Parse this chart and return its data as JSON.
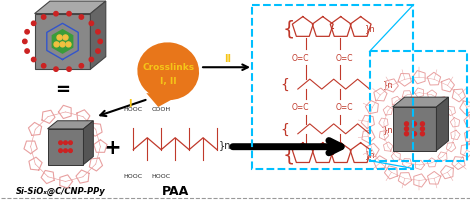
{
  "bg_color": "#ffffff",
  "label_si": "Si-SiOₓ@C/CNP-PPy",
  "label_paa": "PAA",
  "crosslinks_text_line1": "Crosslinks",
  "crosslinks_text_line2": "I, II",
  "crosslinks_color": "#e8761a",
  "crosslinks_text_color": "#f5c518",
  "arrow_color": "#111111",
  "roman_color": "#f5c518",
  "structure_color": "#c0392b",
  "ppy_ring_color": "#e8a0a0",
  "dashed_box_color": "#00bfff",
  "bottom_line_color": "#999999",
  "cube_face": "#888888",
  "cube_top": "#aaaaaa",
  "cube_right": "#666666",
  "cube_edge": "#444444",
  "green_core": "#3a9c3a",
  "gold_dot": "#f0c040",
  "red_dot": "#cc2222"
}
